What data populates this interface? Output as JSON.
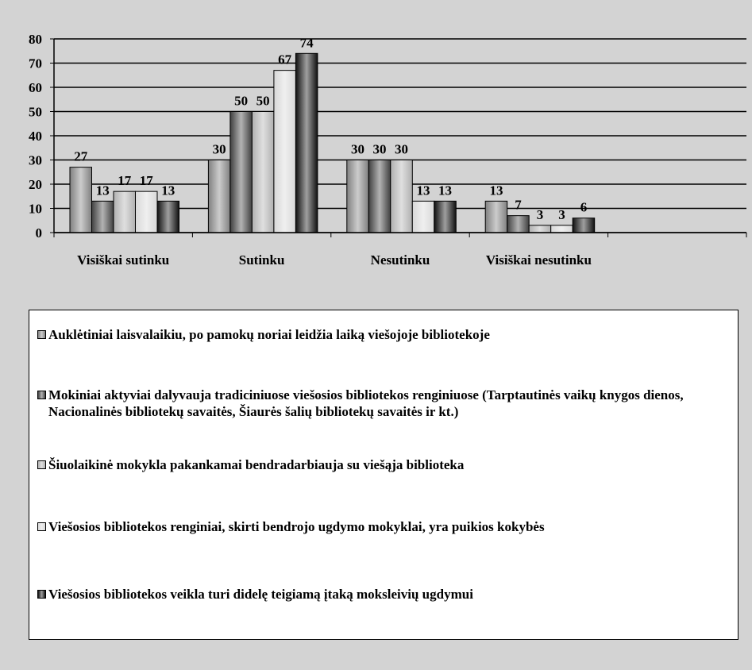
{
  "chart_data": {
    "type": "bar",
    "categories": [
      "Visiškai sutinku",
      "Sutinku",
      "Nesutinku",
      "Visiškai nesutinku",
      null
    ],
    "series": [
      {
        "name": "Auklėtiniai laisvalaikiu, po pamokų noriai leidžia laiką viešojoje bibliotekoje",
        "color": "#808080",
        "values": [
          27,
          30,
          30,
          13,
          null
        ]
      },
      {
        "name": "Mokiniai aktyviai dalyvauja tradiciniuose viešosios bibliotekos renginiuose (Tarptautinės vaikų knygos dienos, Nacionalinės bibliotekų savaitės, Šiaurės šalių bibliotekų savaitės ir kt.)",
        "color": "#404040",
        "values": [
          13,
          50,
          30,
          7,
          null
        ]
      },
      {
        "name": "Šiuolaikinė mokykla pakankamai bendradarbiauja su viešąja biblioteka",
        "color": "#b0b0b0",
        "values": [
          17,
          50,
          30,
          3,
          null
        ]
      },
      {
        "name": "Viešosios bibliotekos renginiai, skirti bendrojo ugdymo mokyklai, yra puikios kokybės",
        "color": "#d8d8d8",
        "values": [
          17,
          67,
          13,
          3,
          null
        ]
      },
      {
        "name": "Viešosios bibliotekos veikla turi didelę teigiamą įtaką moksleivių ugdymui",
        "color": "#101010",
        "values": [
          13,
          74,
          13,
          6,
          null
        ]
      }
    ],
    "ylim": [
      0,
      80
    ],
    "yticks": [
      0,
      10,
      20,
      30,
      40,
      50,
      60,
      70,
      80
    ],
    "grid": true
  }
}
